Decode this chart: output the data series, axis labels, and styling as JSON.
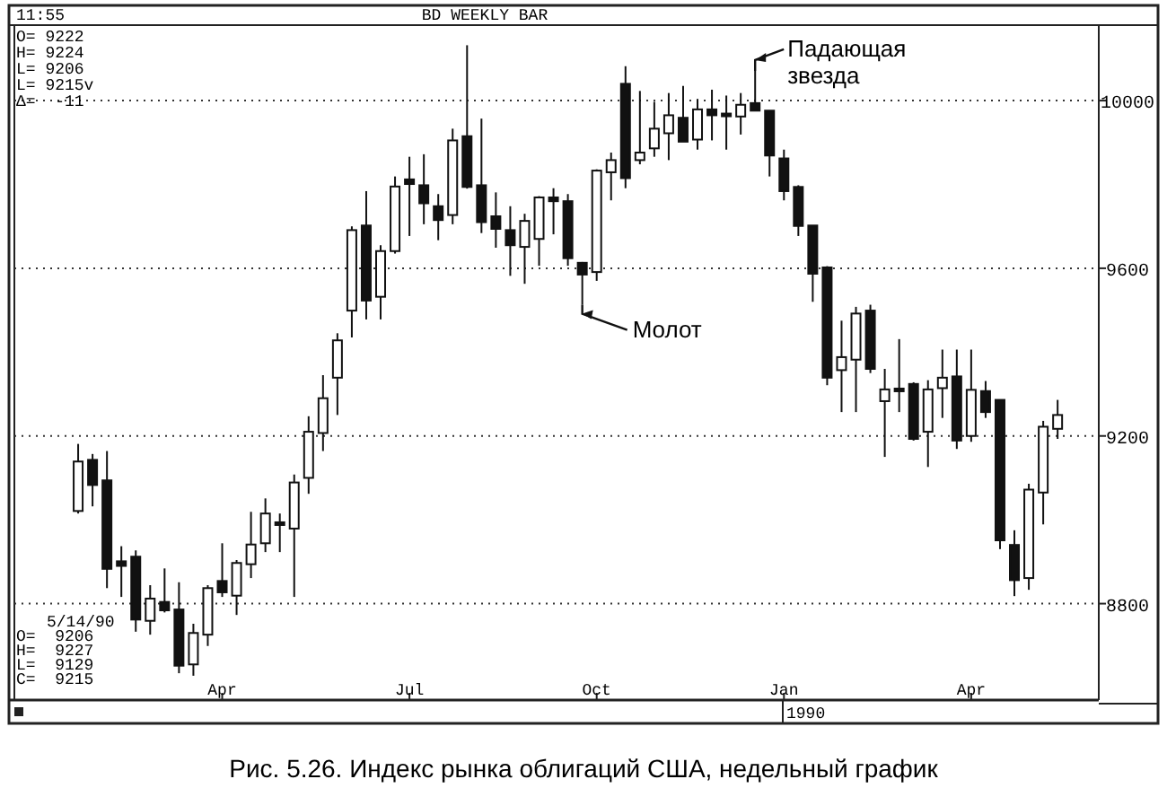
{
  "chart_data": {
    "type": "candlestick",
    "title": "Рис. 5.26. Индекс рынка облигаций США, недельный график",
    "subtitle": "BD WEEKLY BAR",
    "x": [
      "1989-01-23",
      "1989-01-30",
      "1989-02-06",
      "1989-02-13",
      "1989-02-20",
      "1989-02-27",
      "1989-03-06",
      "1989-03-13",
      "1989-03-20",
      "1989-03-27",
      "1989-04-03",
      "1989-04-10",
      "1989-04-17",
      "1989-04-24",
      "1989-05-01",
      "1989-05-08",
      "1989-05-15",
      "1989-05-22",
      "1989-05-29",
      "1989-06-05",
      "1989-06-12",
      "1989-06-19",
      "1989-06-26",
      "1989-07-03",
      "1989-07-10",
      "1989-07-17",
      "1989-07-24",
      "1989-07-31",
      "1989-08-07",
      "1989-08-14",
      "1989-08-21",
      "1989-08-28",
      "1989-09-04",
      "1989-09-11",
      "1989-09-18",
      "1989-09-25",
      "1989-10-02",
      "1989-10-09",
      "1989-10-16",
      "1989-10-23",
      "1989-10-30",
      "1989-11-06",
      "1989-11-13",
      "1989-11-20",
      "1989-11-27",
      "1989-12-04",
      "1989-12-11",
      "1989-12-18",
      "1989-12-25",
      "1990-01-01",
      "1990-01-08",
      "1990-01-15",
      "1990-01-22",
      "1990-01-29",
      "1990-02-05",
      "1990-02-12",
      "1990-02-19",
      "1990-02-26",
      "1990-03-05",
      "1990-03-12",
      "1990-03-19",
      "1990-03-26",
      "1990-04-02",
      "1990-04-09",
      "1990-04-16",
      "1990-04-23",
      "1990-04-30",
      "1990-05-07",
      "1990-05-14"
    ],
    "ohlc": [
      [
        9021,
        9181,
        9015,
        9139
      ],
      [
        9143,
        9157,
        9032,
        9083
      ],
      [
        9094,
        9164,
        8837,
        8883
      ],
      [
        8901,
        8937,
        8816,
        8890
      ],
      [
        8912,
        8927,
        8733,
        8762
      ],
      [
        8759,
        8844,
        8726,
        8812
      ],
      [
        8804,
        8884,
        8779,
        8784
      ],
      [
        8786,
        8851,
        8634,
        8652
      ],
      [
        8655,
        8752,
        8628,
        8730
      ],
      [
        8726,
        8844,
        8699,
        8837
      ],
      [
        8854,
        8944,
        8816,
        8827
      ],
      [
        8819,
        8904,
        8773,
        8897
      ],
      [
        8894,
        9019,
        8861,
        8941
      ],
      [
        8944,
        9051,
        8923,
        9015
      ],
      [
        8994,
        9015,
        8923,
        8990
      ],
      [
        8979,
        9108,
        8816,
        9089
      ],
      [
        9100,
        9247,
        9062,
        9210
      ],
      [
        9207,
        9345,
        9164,
        9290
      ],
      [
        9339,
        9445,
        9250,
        9428
      ],
      [
        9499,
        9700,
        9435,
        9691
      ],
      [
        9702,
        9784,
        9478,
        9523
      ],
      [
        9532,
        9655,
        9478,
        9641
      ],
      [
        9641,
        9819,
        9635,
        9795
      ],
      [
        9812,
        9866,
        9677,
        9801
      ],
      [
        9798,
        9872,
        9705,
        9755
      ],
      [
        9748,
        9777,
        9667,
        9715
      ],
      [
        9727,
        9933,
        9705,
        9905
      ],
      [
        9915,
        10132,
        9790,
        9794
      ],
      [
        9798,
        9957,
        9684,
        9710
      ],
      [
        9724,
        9781,
        9649,
        9694
      ],
      [
        9691,
        9748,
        9582,
        9655
      ],
      [
        9651,
        9730,
        9563,
        9713
      ],
      [
        9670,
        9772,
        9606,
        9769
      ],
      [
        9769,
        9791,
        9681,
        9760
      ],
      [
        9760,
        9777,
        9606,
        9624
      ],
      [
        9613,
        9615,
        9513,
        9585
      ],
      [
        9591,
        9836,
        9570,
        9833
      ],
      [
        9829,
        9876,
        9762,
        9858
      ],
      [
        10040,
        10082,
        9791,
        9815
      ],
      [
        9858,
        10023,
        9848,
        9876
      ],
      [
        9886,
        9997,
        9866,
        9933
      ],
      [
        9922,
        10018,
        9858,
        9965
      ],
      [
        9959,
        10035,
        9902,
        9902
      ],
      [
        9907,
        10004,
        9883,
        9979
      ],
      [
        9979,
        10026,
        9905,
        9965
      ],
      [
        9969,
        10012,
        9883,
        9967
      ],
      [
        9962,
        10018,
        9919,
        9990
      ],
      [
        9994,
        10071,
        9976,
        9976
      ],
      [
        9976,
        9976,
        9819,
        9869
      ],
      [
        9862,
        9883,
        9762,
        9784
      ],
      [
        9794,
        9798,
        9677,
        9701
      ],
      [
        9702,
        9702,
        9520,
        9587
      ],
      [
        9602,
        9605,
        9321,
        9339
      ],
      [
        9357,
        9475,
        9257,
        9388
      ],
      [
        9382,
        9508,
        9257,
        9492
      ],
      [
        9499,
        9513,
        9350,
        9360
      ],
      [
        9283,
        9360,
        9150,
        9311
      ],
      [
        9313,
        9431,
        9257,
        9311
      ],
      [
        9324,
        9328,
        9189,
        9193
      ],
      [
        9210,
        9333,
        9126,
        9311
      ],
      [
        9314,
        9406,
        9243,
        9339
      ],
      [
        9342,
        9406,
        9169,
        9189
      ],
      [
        9200,
        9406,
        9186,
        9310
      ],
      [
        9307,
        9331,
        9243,
        9257
      ],
      [
        9286,
        9286,
        8930,
        8951
      ],
      [
        8940,
        8975,
        8818,
        8856
      ],
      [
        8861,
        9086,
        8833,
        9072
      ],
      [
        9065,
        9236,
        8989,
        9222
      ],
      [
        9217,
        9286,
        9193,
        9250
      ]
    ],
    "color": "#111111",
    "xlim": [
      "1988-12-23",
      "1990-06-03"
    ],
    "xticks": [
      {
        "value": "1989-04-03",
        "label": "Apr"
      },
      {
        "value": "1989-07-03",
        "label": "Jul"
      },
      {
        "value": "1989-10-02",
        "label": "Oct"
      },
      {
        "value": "1990-01-01",
        "label": "Jan"
      },
      {
        "value": "1990-04-02",
        "label": "Apr"
      }
    ],
    "ylim": [
      8570,
      10180
    ],
    "yticks": [
      8800,
      9200,
      9600,
      10000
    ],
    "grid": "y",
    "annotations": [
      "11:55",
      "O= 9222",
      "H= 9224",
      "L= 9206",
      "L= 9215v",
      "Δ=  -11",
      "5/14/90",
      "O=  9206",
      "H=  9227",
      "L=  9129",
      "C=  9215",
      "1990",
      {
        "text": "Молот",
        "x": "1989-09-25",
        "y": 9513
      },
      {
        "text": "Падающая звезда",
        "x": "1989-12-18",
        "y": 10071
      }
    ]
  }
}
